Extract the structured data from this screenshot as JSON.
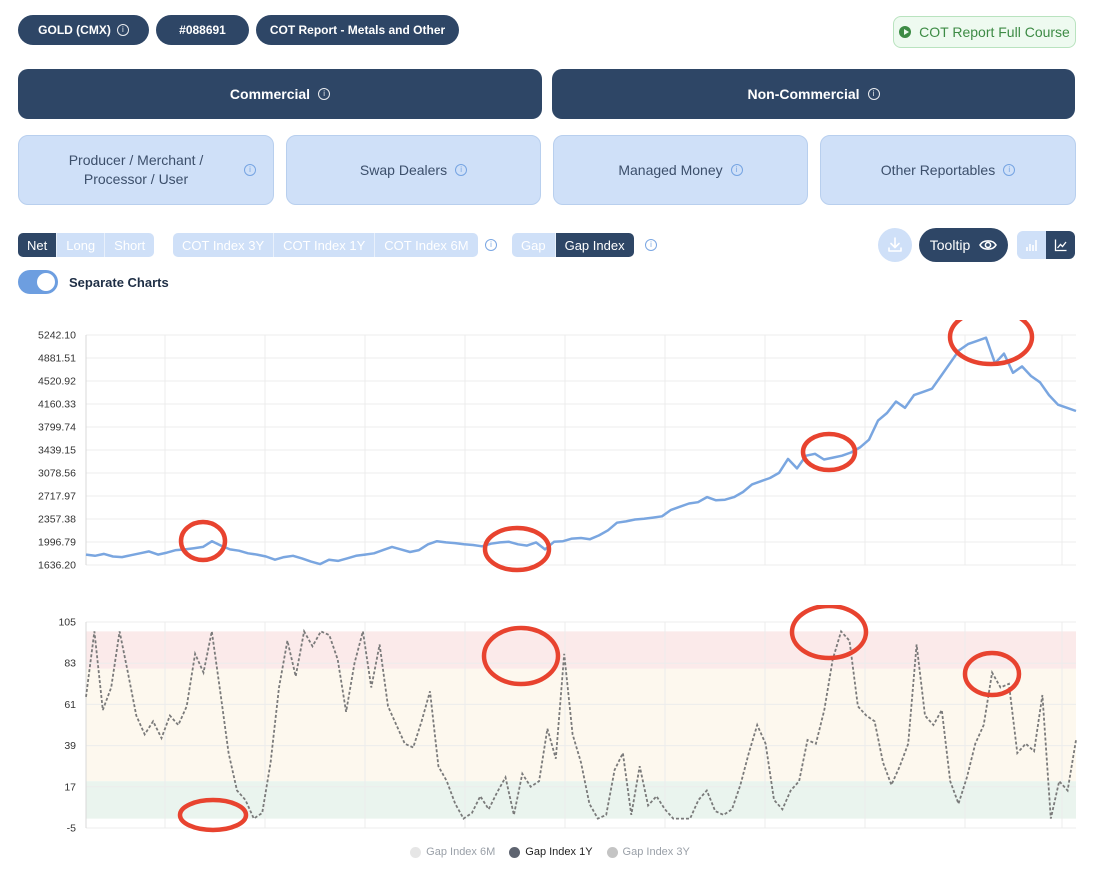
{
  "header": {
    "market_pill": "GOLD (CMX)",
    "code_pill": "#088691",
    "report_pill": "COT Report - Metals and Other",
    "course_button": "COT Report Full Course"
  },
  "main_tabs": [
    {
      "label": "Commercial",
      "active": true
    },
    {
      "label": "Non-Commercial",
      "active": false
    }
  ],
  "sub_tabs": [
    {
      "label": "Producer / Merchant / Processor / User"
    },
    {
      "label": "Swap Dealers"
    },
    {
      "label": "Managed Money"
    },
    {
      "label": "Other Reportables"
    }
  ],
  "position_toggle": [
    {
      "label": "Net",
      "active": true
    },
    {
      "label": "Long",
      "active": false
    },
    {
      "label": "Short",
      "active": false
    }
  ],
  "cot_index_toggle": [
    {
      "label": "COT Index 3Y"
    },
    {
      "label": "COT Index 1Y"
    },
    {
      "label": "COT Index 6M"
    }
  ],
  "gap_toggle": [
    {
      "label": "Gap",
      "active": false
    },
    {
      "label": "Gap Index",
      "active": true
    }
  ],
  "toolbar": {
    "tooltip_label": "Tooltip",
    "download_icon": "download-icon",
    "eye_icon": "eye-icon",
    "bar_chart_icon": "bar-chart-icon",
    "line_chart_icon": "line-chart-icon"
  },
  "separate_charts": {
    "label": "Separate Charts",
    "on": true
  },
  "colors": {
    "navy": "#2e4666",
    "light_blue": "#cfe0f8",
    "accent_blue": "#6d9ee0",
    "price_line": "#7aa6e0",
    "gap_line": "#7a7a7a",
    "highlight_circle": "#e8432f",
    "upper_zone": "#fbeaea",
    "middle_zone": "#fdf8ee",
    "lower_zone": "#eaf4ee"
  },
  "chart_data": [
    {
      "type": "line",
      "series": [
        {
          "values": [
            1800,
            1780,
            1810,
            1770,
            1760,
            1790,
            1820,
            1850,
            1800,
            1830,
            1870,
            1880,
            1900,
            1920,
            2010,
            1940,
            1880,
            1860,
            1820,
            1800,
            1770,
            1720,
            1760,
            1780,
            1740,
            1690,
            1650,
            1720,
            1700,
            1740,
            1780,
            1800,
            1820,
            1870,
            1920,
            1880,
            1840,
            1870,
            1960,
            2010,
            1990,
            1980,
            1960,
            1950,
            1930,
            1970,
            1990,
            2000,
            1960,
            1940,
            1990,
            1880,
            2000,
            2010,
            2050,
            2060,
            2040,
            2100,
            2180,
            2300,
            2320,
            2350,
            2360,
            2380,
            2400,
            2500,
            2550,
            2600,
            2620,
            2700,
            2650,
            2660,
            2700,
            2780,
            2900,
            2950,
            3000,
            3080,
            3300,
            3150,
            3350,
            3380,
            3290,
            3320,
            3350,
            3400,
            3480,
            3600,
            3900,
            4020,
            4200,
            4100,
            4300,
            4350,
            4400,
            4600,
            4800,
            5000,
            5100,
            5150,
            5200,
            4800,
            4950,
            4650,
            4750,
            4600,
            4500,
            4300,
            4150,
            4100,
            4050
          ]
        }
      ],
      "ylim": [
        1636.2,
        5242.1
      ],
      "yticks": [
        "5242.10",
        "4881.51",
        "4520.92",
        "4160.33",
        "3799.74",
        "3439.15",
        "3078.56",
        "2717.97",
        "2357.38",
        "1996.79",
        "1636.20"
      ],
      "grid": true,
      "highlight_count": 4
    },
    {
      "type": "line",
      "series": [
        {
          "name": "Gap Index 6M",
          "visible": false,
          "values": []
        },
        {
          "name": "Gap Index 1Y",
          "visible": true,
          "values": [
            65,
            100,
            58,
            70,
            100,
            78,
            55,
            45,
            52,
            43,
            55,
            50,
            60,
            88,
            78,
            100,
            68,
            35,
            15,
            10,
            0,
            3,
            30,
            70,
            95,
            76,
            100,
            92,
            100,
            98,
            85,
            57,
            83,
            100,
            70,
            93,
            60,
            50,
            40,
            38,
            52,
            68,
            28,
            20,
            8,
            0,
            3,
            12,
            5,
            14,
            22,
            2,
            24,
            17,
            20,
            48,
            32,
            88,
            45,
            30,
            8,
            0,
            2,
            26,
            35,
            2,
            28,
            7,
            12,
            5,
            0,
            0,
            0,
            10,
            15,
            4,
            2,
            5,
            18,
            35,
            50,
            40,
            10,
            5,
            15,
            20,
            42,
            40,
            58,
            85,
            100,
            95,
            60,
            55,
            52,
            30,
            18,
            28,
            40,
            93,
            55,
            50,
            58,
            20,
            8,
            22,
            40,
            50,
            78,
            70,
            72,
            35,
            40,
            36,
            66,
            0,
            20,
            15,
            42
          ]
        },
        {
          "name": "Gap Index 3Y",
          "visible": false,
          "values": []
        }
      ],
      "ylim": [
        -5,
        105
      ],
      "yticks": [
        "105",
        "83",
        "61",
        "39",
        "17",
        "-5"
      ],
      "zones": [
        {
          "from": 80,
          "to": 100
        },
        {
          "from": 20,
          "to": 80
        },
        {
          "from": 0,
          "to": 20
        }
      ],
      "grid": true,
      "highlight_count": 4
    }
  ],
  "legend": [
    {
      "label": "Gap Index 6M",
      "active": false,
      "color": "#e6e6e6"
    },
    {
      "label": "Gap Index 1Y",
      "active": true,
      "color": "#5e6470"
    },
    {
      "label": "Gap Index 3Y",
      "active": false,
      "color": "#c4c4c4"
    }
  ]
}
